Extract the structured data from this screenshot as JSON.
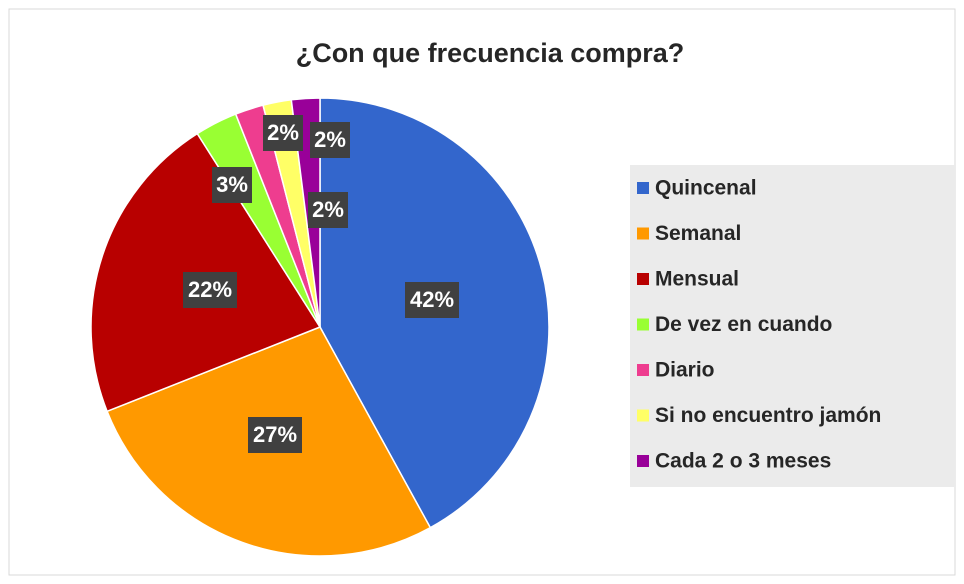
{
  "chart_data": {
    "type": "pie",
    "title": "¿Con que frecuencia compra?",
    "categories": [
      "Quincenal",
      "Semanal",
      "Mensual",
      "De vez en cuando",
      "Diario",
      "Si no encuentro jamón",
      "Cada 2 o 3 meses"
    ],
    "values": [
      42,
      27,
      22,
      3,
      2,
      2,
      2
    ],
    "value_labels": [
      "42%",
      "27%",
      "22%",
      "3%",
      "2%",
      "2%",
      "2%"
    ],
    "colors": [
      "#3366cc",
      "#ff9900",
      "#b80000",
      "#99ff33",
      "#ee3d8f",
      "#ffff66",
      "#990099"
    ],
    "legend": "right"
  }
}
